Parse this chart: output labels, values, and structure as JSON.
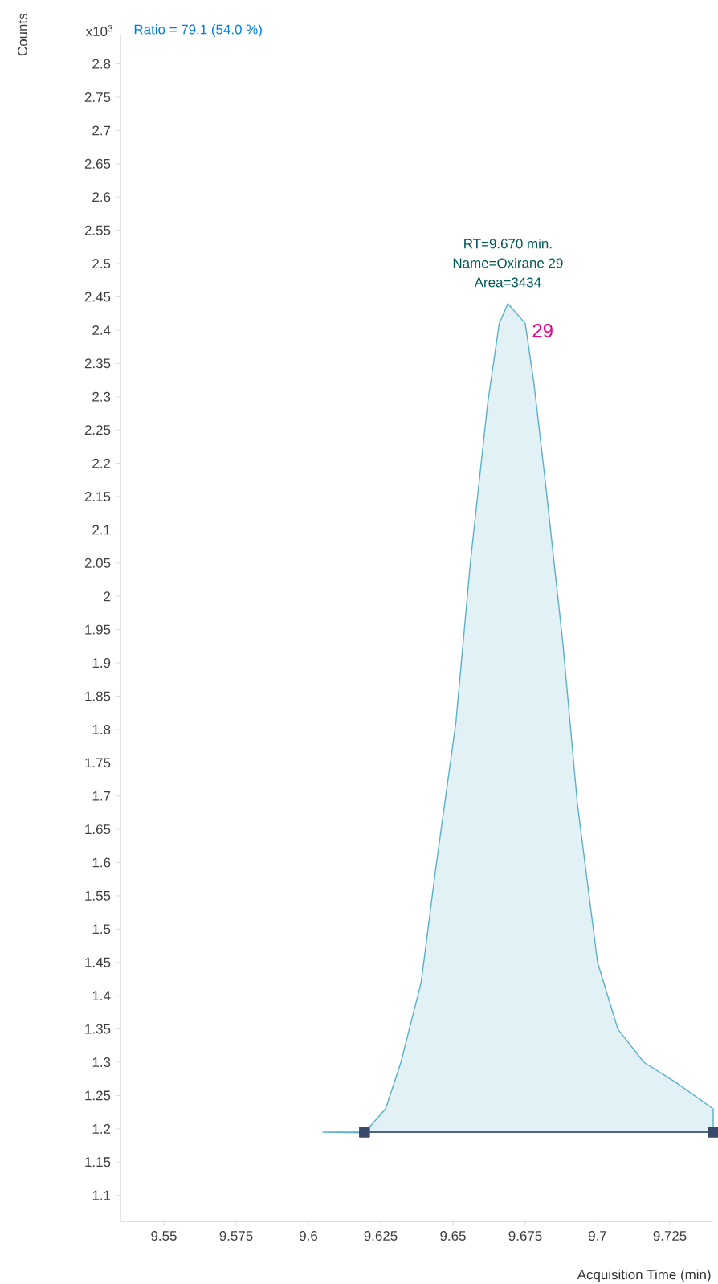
{
  "chart_data": {
    "type": "area",
    "ylabel": "Counts",
    "xlabel": "Acquisition Time (min)",
    "annotations": [
      "x10$^{3}$",
      "Ratio = 79.1 (54.0 %)",
      "RT=9.670 min.",
      "Name=Oxirane 29",
      "Area=3434",
      {
        "text": "29",
        "x": 9.675,
        "y": 2.41
      }
    ],
    "xlim": [
      9.535,
      9.74
    ],
    "ylim": [
      1.061,
      2.843
    ],
    "xticks": [
      9.55,
      9.575,
      9.6,
      9.625,
      9.65,
      9.675,
      9.7,
      9.725
    ],
    "yticks": [
      1.1,
      1.15,
      1.2,
      1.25,
      1.3,
      1.35,
      1.4,
      1.45,
      1.5,
      1.55,
      1.6,
      1.65,
      1.7,
      1.75,
      1.8,
      1.85,
      1.9,
      1.95,
      2,
      2.05,
      2.1,
      2.15,
      2.2,
      2.25,
      2.3,
      2.35,
      2.4,
      2.45,
      2.5,
      2.55,
      2.6,
      2.65,
      2.7,
      2.75,
      2.8
    ],
    "grid": false,
    "series": [
      {
        "color": "#5ab0c8",
        "x": [
          9.605,
          9.6194,
          9.6267,
          9.632,
          9.639,
          9.644,
          9.651,
          9.656,
          9.662,
          9.666,
          9.669,
          9.675,
          9.678,
          9.682,
          9.688,
          9.693,
          9.7,
          9.707,
          9.716,
          9.727,
          9.74
        ],
        "values": [
          1.195,
          1.194,
          1.23,
          1.3,
          1.42,
          1.59,
          1.81,
          2.05,
          2.29,
          2.41,
          2.44,
          2.41,
          2.32,
          2.17,
          1.93,
          1.69,
          1.45,
          1.35,
          1.3,
          1.27,
          1.23
        ]
      },
      {
        "type": "line",
        "color": "#3a4a6a",
        "marker": "square",
        "x": [
          9.6194,
          9.74
        ],
        "values": [
          1.195,
          1.195
        ]
      }
    ]
  }
}
